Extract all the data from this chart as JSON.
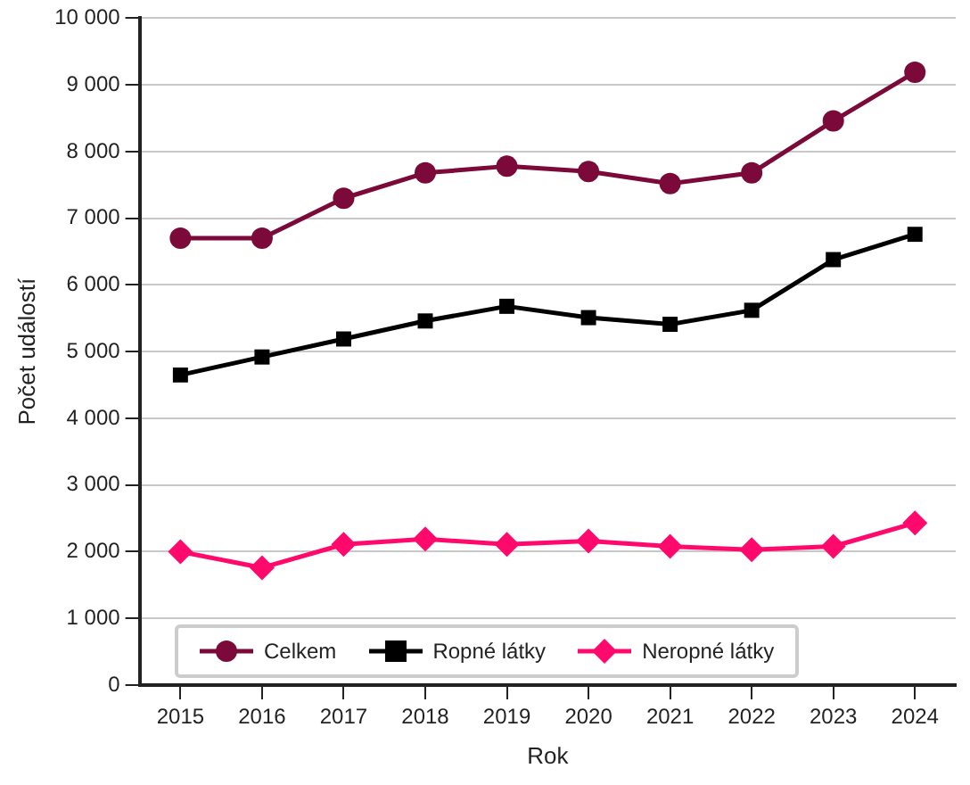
{
  "chart_data": {
    "type": "line",
    "xlabel": "Rok",
    "ylabel": "Počet událostí",
    "categories": [
      "2015",
      "2016",
      "2017",
      "2018",
      "2019",
      "2020",
      "2021",
      "2022",
      "2023",
      "2024"
    ],
    "series": [
      {
        "name": "Celkem",
        "color": "#7b0a3a",
        "marker": "circle",
        "values": [
          6700,
          6700,
          7300,
          7680,
          7780,
          7700,
          7520,
          7680,
          8460,
          9190
        ]
      },
      {
        "name": "Ropné látky",
        "color": "#000000",
        "marker": "square",
        "values": [
          4650,
          4920,
          5190,
          5460,
          5680,
          5510,
          5410,
          5620,
          6380,
          6760
        ]
      },
      {
        "name": "Neropné látky",
        "color": "#ff0a6c",
        "marker": "diamond",
        "values": [
          2000,
          1760,
          2110,
          2190,
          2110,
          2160,
          2080,
          2030,
          2080,
          2430
        ]
      }
    ],
    "ylim": [
      0,
      10000
    ],
    "yticks": [
      0,
      {
        "value": 1000,
        "label": "1 000"
      },
      {
        "value": 2000,
        "label": "2 000"
      },
      {
        "value": 3000,
        "label": "3 000"
      },
      {
        "value": 4000,
        "label": "4 000"
      },
      {
        "value": 5000,
        "label": "5 000"
      },
      {
        "value": 6000,
        "label": "6 000"
      },
      {
        "value": 7000,
        "label": "7 000"
      },
      {
        "value": 8000,
        "label": "8 000"
      },
      {
        "value": 9000,
        "label": "9 000"
      },
      {
        "value": 10000,
        "label": "10 000"
      }
    ],
    "grid": "y",
    "legend": "bottom left",
    "line_style": "solid"
  }
}
